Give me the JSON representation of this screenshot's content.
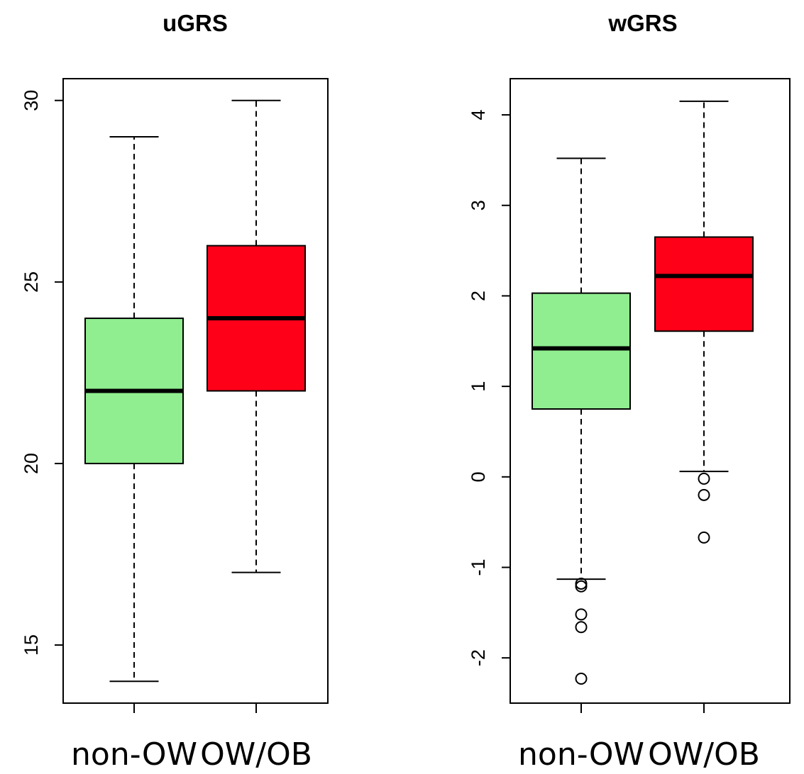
{
  "chart_data": [
    {
      "type": "box",
      "title": "uGRS",
      "xlabel": "",
      "ylabel": "",
      "categories": [
        "non-OW",
        "OW/OB"
      ],
      "yticks": [
        "15",
        "20",
        "25",
        "30"
      ],
      "ylim": [
        13.4,
        30.6
      ],
      "grid": false,
      "boxes": [
        {
          "category": "non-OW",
          "color": "#90EE90",
          "whisker_low": 14,
          "q1": 20,
          "median": 22,
          "q3": 24,
          "whisker_high": 29,
          "outliers": []
        },
        {
          "category": "OW/OB",
          "color": "#FF0019",
          "whisker_low": 17,
          "q1": 22,
          "median": 24,
          "q3": 26,
          "whisker_high": 30,
          "outliers": []
        }
      ]
    },
    {
      "type": "box",
      "title": "wGRS",
      "xlabel": "",
      "ylabel": "",
      "categories": [
        "non-OW",
        "OW/OB"
      ],
      "yticks": [
        "-2",
        "-1",
        "0",
        "1",
        "2",
        "3",
        "4"
      ],
      "ylim": [
        -2.5,
        4.4
      ],
      "grid": false,
      "boxes": [
        {
          "category": "non-OW",
          "color": "#90EE90",
          "whisker_low": -1.13,
          "q1": 0.75,
          "median": 1.42,
          "q3": 2.03,
          "whisker_high": 3.52,
          "outliers": [
            -1.18,
            -1.21,
            -1.52,
            -1.66,
            -2.23
          ]
        },
        {
          "category": "OW/OB",
          "color": "#FF0019",
          "whisker_low": 0.06,
          "q1": 1.61,
          "median": 2.22,
          "q3": 2.65,
          "whisker_high": 4.15,
          "outliers": [
            -0.02,
            -0.2,
            -0.67
          ]
        }
      ]
    }
  ]
}
